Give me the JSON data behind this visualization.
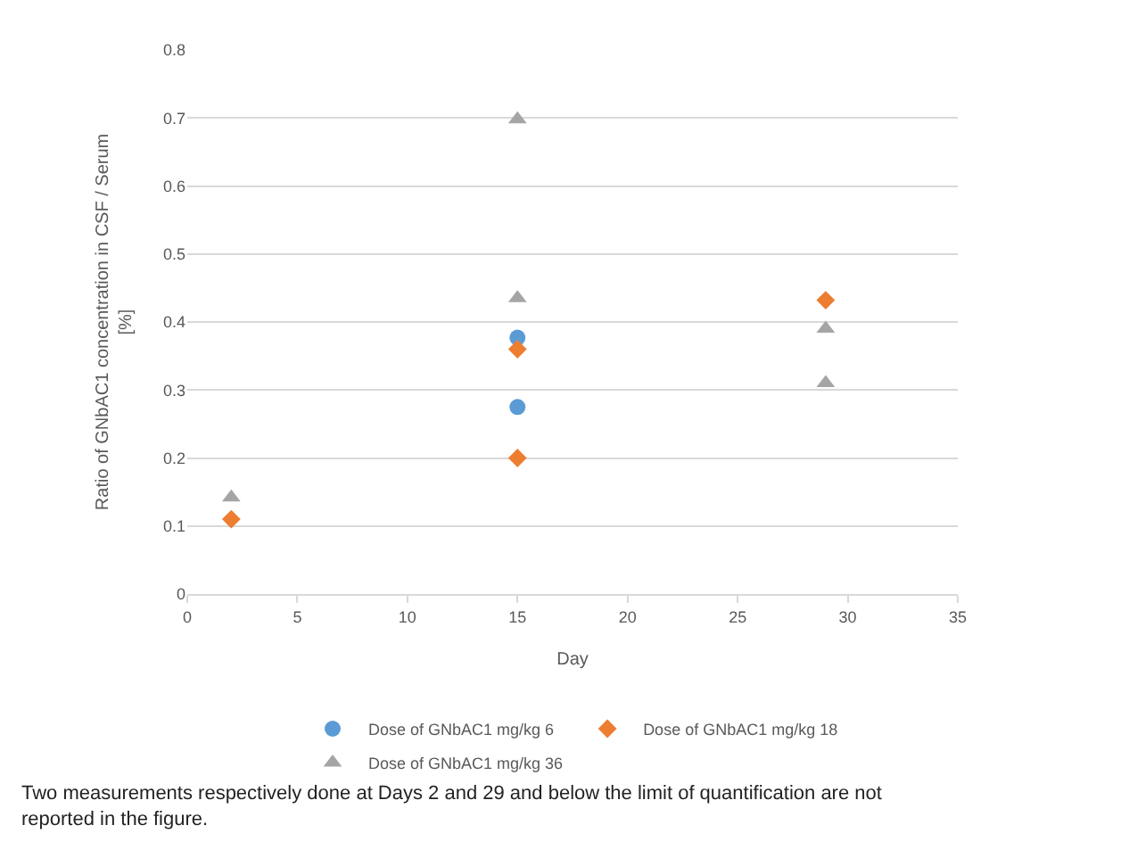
{
  "chart_data": {
    "type": "scatter",
    "xlabel": "Day",
    "ylabel": "Ratio of GNbAC1 concentration in CSF / Serum\n[%]",
    "xlim": [
      0,
      35
    ],
    "xticks": [
      0,
      5,
      10,
      15,
      20,
      25,
      30,
      35
    ],
    "ylim": [
      0,
      0.8
    ],
    "yticks": [
      0,
      0.1,
      0.2,
      0.3,
      0.4,
      0.5,
      0.6,
      0.7,
      0.8
    ],
    "grid": "y",
    "legend": "bottom",
    "series": [
      {
        "name": "Dose of GNbAC1 mg/kg 6",
        "color": "#5b9bd5",
        "marker": "circle",
        "x": [
          15,
          15
        ],
        "values": [
          0.377,
          0.275
        ]
      },
      {
        "name": "Dose of GNbAC1 mg/kg 18",
        "color": "#ed7d31",
        "marker": "diamond",
        "x": [
          2,
          15,
          15,
          29
        ],
        "values": [
          0.11,
          0.36,
          0.2,
          0.432
        ]
      },
      {
        "name": "Dose of GNbAC1 mg/kg 36",
        "color": "#a5a5a5",
        "marker": "triangle",
        "x": [
          2,
          15,
          15,
          29,
          29
        ],
        "values": [
          0.142,
          0.698,
          0.435,
          0.39,
          0.31
        ]
      }
    ],
    "annotations": [
      "Two measurements respectively done at Days 2 and 29 and below the limit of quantification are not reported in the figure."
    ]
  }
}
